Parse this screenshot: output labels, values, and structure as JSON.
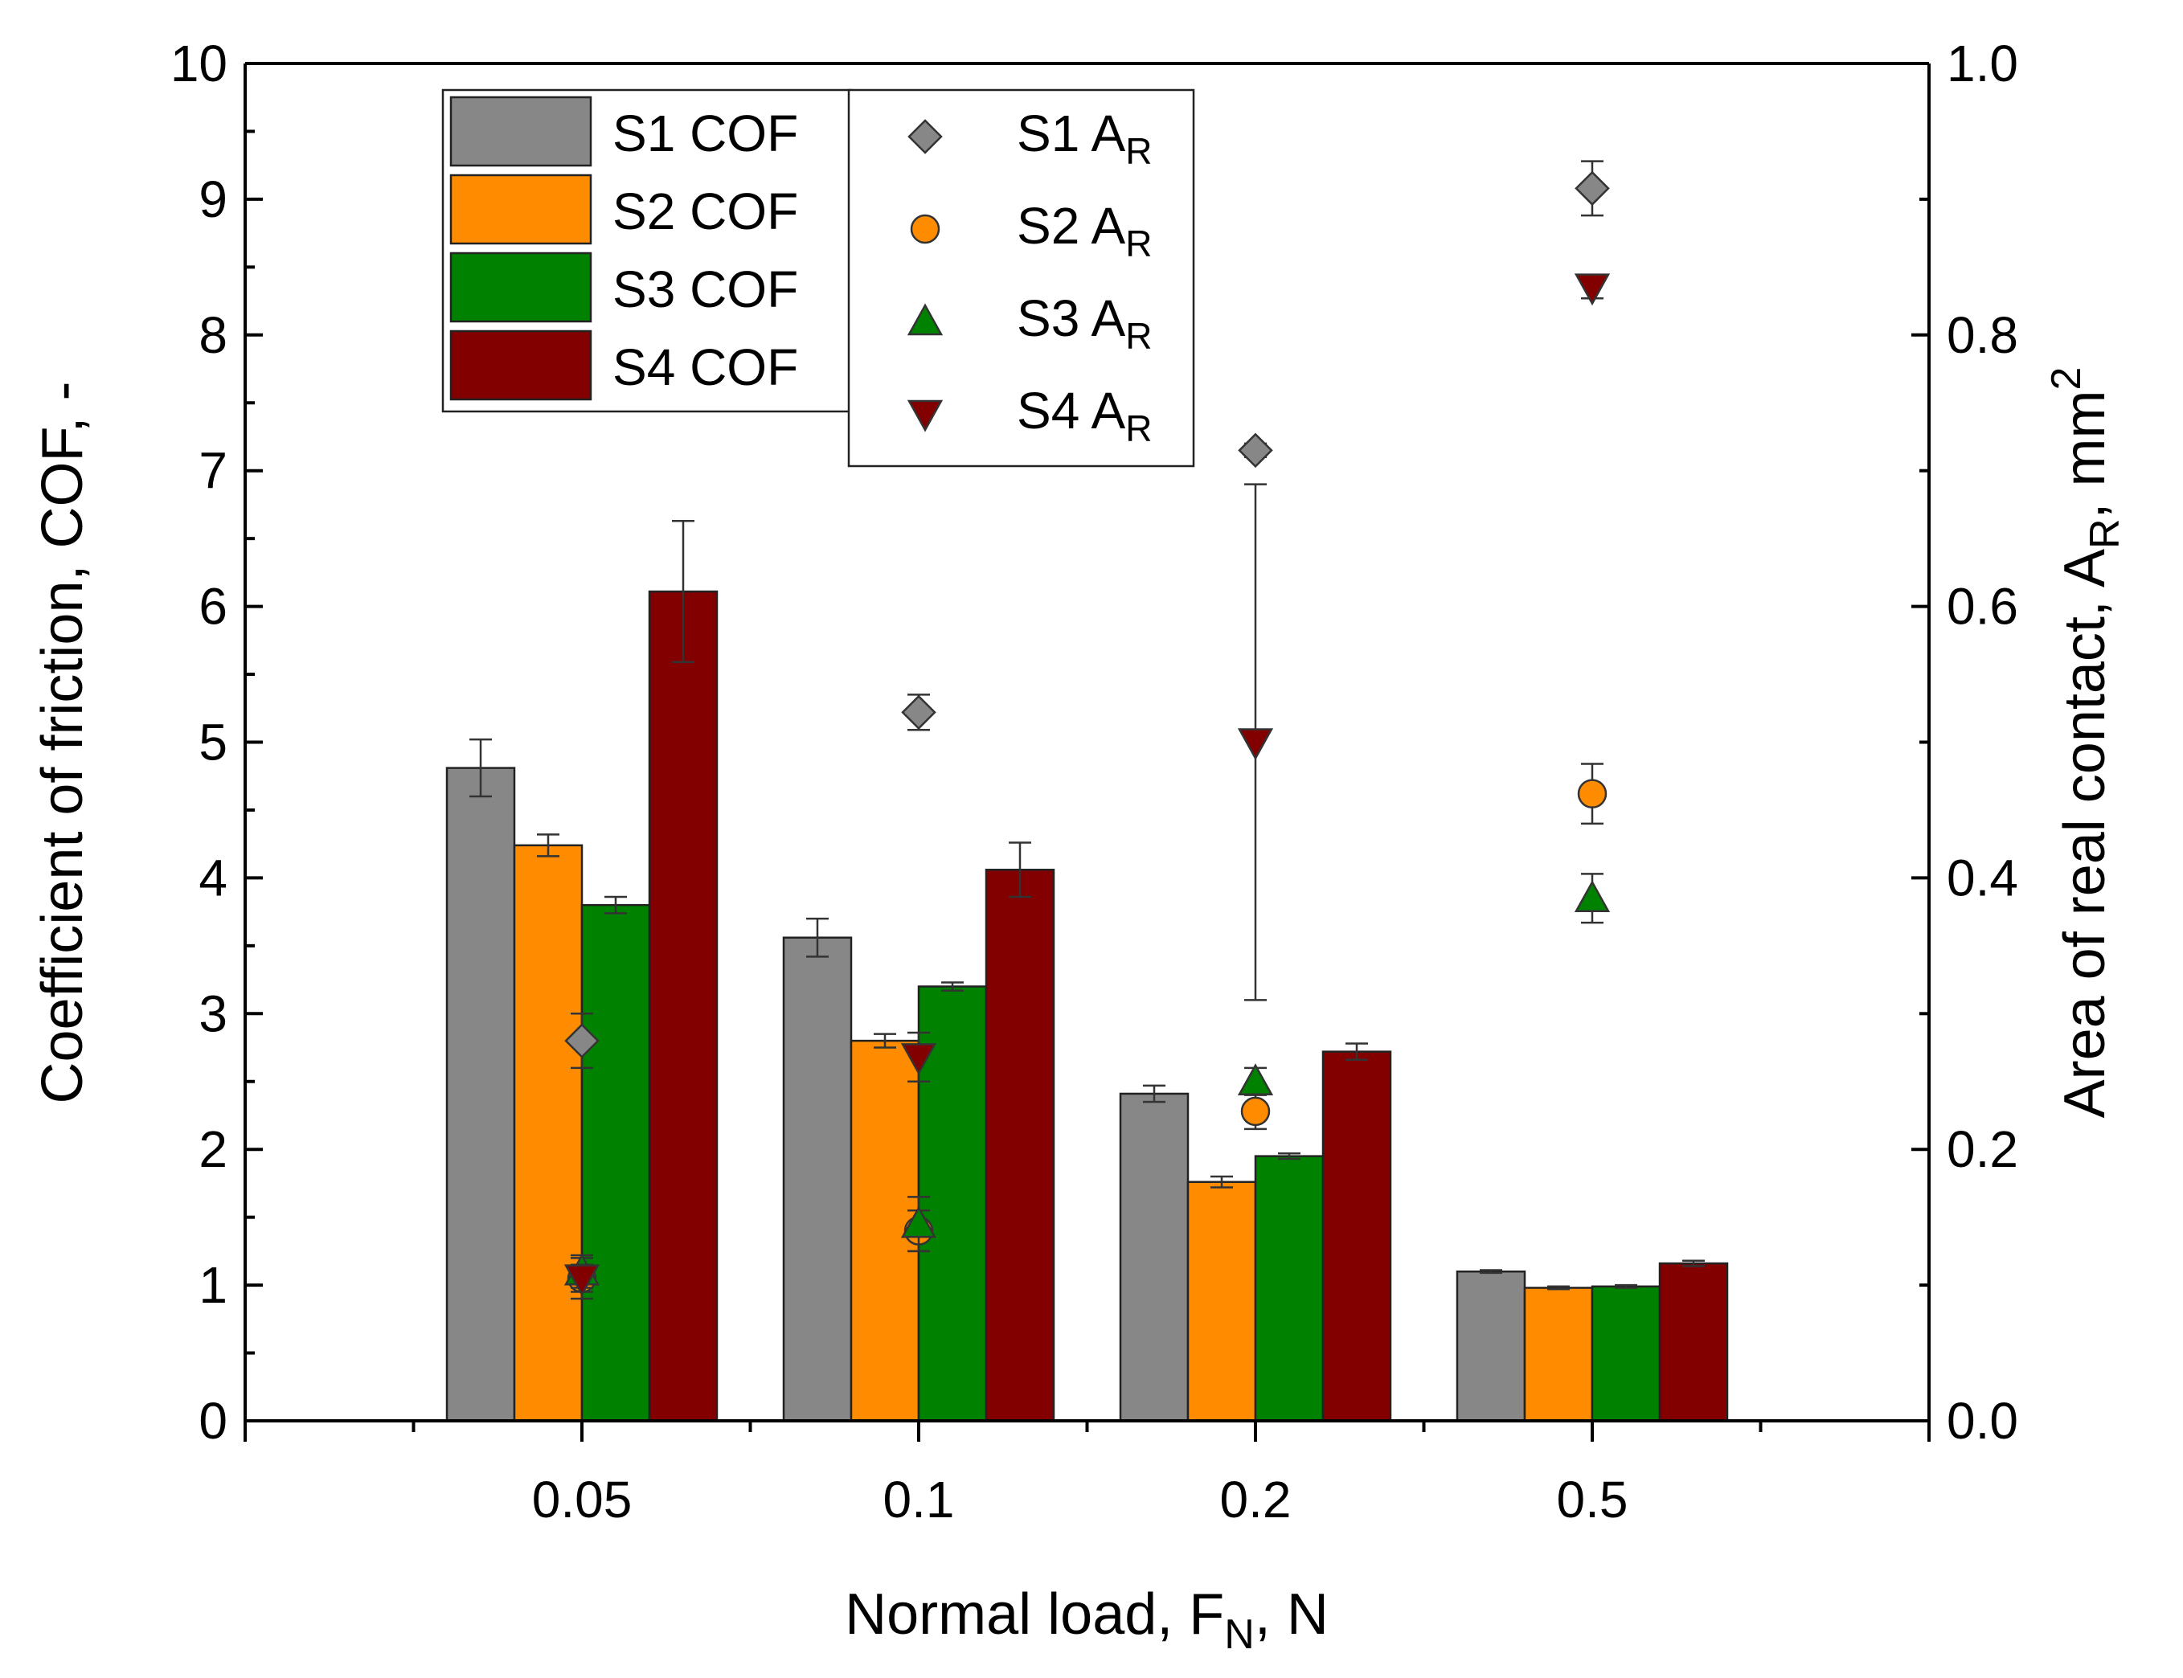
{
  "chart_data": {
    "type": "bar",
    "xlabel_parts": {
      "pre": "Normal load,   F",
      "sub": "N",
      "post": ",   N"
    },
    "ylabel": "Coefficient of friction,   COF,   -",
    "y2label_parts": {
      "pre": "Area of real contact,   A",
      "sub": "R",
      "mid": ",   mm",
      "sup": "2"
    },
    "categories": [
      "0.05",
      "0.1",
      "0.2",
      "0.5"
    ],
    "ylim": [
      0,
      10
    ],
    "y_ticks": [
      "0",
      "1",
      "2",
      "3",
      "4",
      "5",
      "6",
      "7",
      "8",
      "9",
      "10"
    ],
    "y2lim": [
      0,
      1.0
    ],
    "y2_ticks": [
      "0.0",
      "0.2",
      "0.4",
      "0.6",
      "0.8",
      "1.0"
    ],
    "bar_series": [
      {
        "name": "S1 COF",
        "color": "#878787",
        "values": [
          4.81,
          3.56,
          2.41,
          1.1
        ],
        "errors": [
          0.21,
          0.14,
          0.06,
          0.01
        ]
      },
      {
        "name": "S2 COF",
        "color": "#ff8c00",
        "values": [
          4.24,
          2.8,
          1.76,
          0.98
        ],
        "errors": [
          0.08,
          0.05,
          0.04,
          0.01
        ]
      },
      {
        "name": "S3 COF",
        "color": "#008200",
        "values": [
          3.8,
          3.2,
          1.95,
          0.99
        ],
        "errors": [
          0.06,
          0.03,
          0.02,
          0.01
        ]
      },
      {
        "name": "S4 COF",
        "color": "#830000",
        "values": [
          6.11,
          4.06,
          2.72,
          1.16
        ],
        "errors": [
          0.52,
          0.2,
          0.06,
          0.02
        ]
      }
    ],
    "scatter_series": [
      {
        "name_pre": "S1 A",
        "name_sub": "R",
        "marker": "diamond",
        "color": "#878787",
        "values": [
          0.28,
          0.522,
          0.715,
          0.908
        ],
        "errors": [
          0.02,
          0.013,
          0.005,
          0.02
        ]
      },
      {
        "name_pre": "S2 A",
        "name_sub": "R",
        "marker": "circle",
        "color": "#ff8c00",
        "values": [
          0.105,
          0.14,
          0.228,
          0.462
        ],
        "errors": [
          0.015,
          0.015,
          0.013,
          0.022
        ]
      },
      {
        "name_pre": "S3 A",
        "name_sub": "R",
        "marker": "triangle-up",
        "color": "#008200",
        "values": [
          0.11,
          0.145,
          0.25,
          0.385
        ],
        "errors": [
          0.012,
          0.02,
          0.01,
          0.018
        ]
      },
      {
        "name_pre": "S4 A",
        "name_sub": "R",
        "marker": "triangle-down",
        "color": "#830000",
        "values": [
          0.105,
          0.268,
          0.5,
          0.835
        ],
        "errors": [
          0.01,
          0.018,
          0.19,
          0.008
        ]
      }
    ]
  }
}
